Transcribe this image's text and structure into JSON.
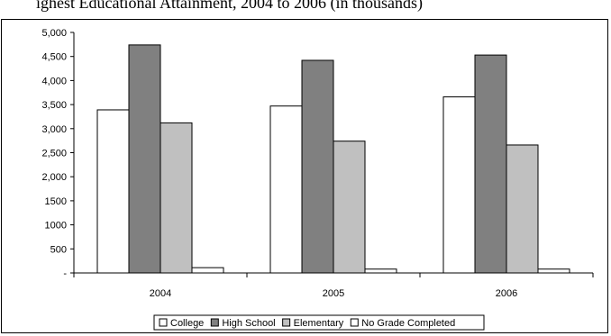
{
  "title": "ighest Educational Attainment, 2004 to 2006 (in thousands)",
  "chart_data": {
    "type": "bar",
    "title": "",
    "xlabel": "",
    "ylabel": "",
    "categories": [
      "2004",
      "2005",
      "2006"
    ],
    "ylim": [
      0,
      5000
    ],
    "yticks": [
      0,
      500,
      1000,
      1500,
      2000,
      2500,
      3000,
      3500,
      4000,
      4500,
      5000
    ],
    "ytick_labels": [
      "-",
      "500",
      "1000",
      "1500",
      "2,000",
      "2,500",
      "3,000",
      "3,500",
      "4,000",
      "4,500",
      "5,000"
    ],
    "grid": false,
    "legend_position": "bottom",
    "series": [
      {
        "name": "College",
        "values": [
          3390,
          3470,
          3660
        ],
        "color": "#ffffff"
      },
      {
        "name": "High School",
        "values": [
          4740,
          4420,
          4530
        ],
        "color": "#808080"
      },
      {
        "name": "Elementary",
        "values": [
          3120,
          2740,
          2660
        ],
        "color": "#c0c0c0"
      },
      {
        "name": "No Grade Completed",
        "values": [
          110,
          80,
          80
        ],
        "color": "#ffffff"
      }
    ]
  }
}
